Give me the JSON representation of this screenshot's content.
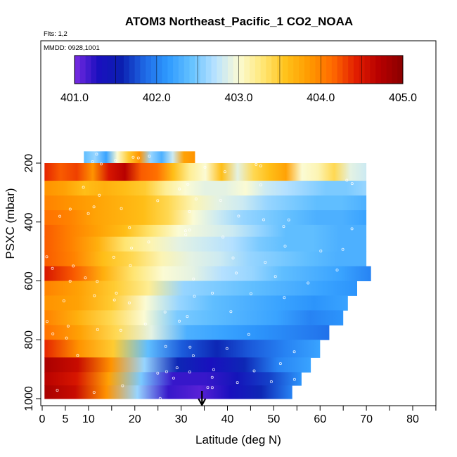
{
  "chart_data": {
    "type": "heatmap",
    "title": "ATOM3 Northeast_Pacific_1 CO2_NOAA",
    "flights_note": "Flts: 1,2",
    "dates_note": "MMDD: 0928,1001",
    "xlabel": "Latitude (deg N)",
    "ylabel": "PSXC (mbar)",
    "xlim": [
      0,
      85
    ],
    "ylim": [
      1000,
      0
    ],
    "x_ticks": [
      0,
      5,
      10,
      20,
      30,
      40,
      50,
      60,
      70,
      80
    ],
    "y_ticks": [
      200,
      400,
      600,
      800,
      1000
    ],
    "colorbar": {
      "min": 401.0,
      "max": 405.0,
      "tick_values": [
        401.0,
        402.0,
        403.0,
        404.0,
        405.0
      ],
      "tick_labels": [
        "401.0",
        "402.0",
        "403.0",
        "404.0",
        "405.0"
      ],
      "colors": [
        "#7a2be2",
        "#1a0fbf",
        "#0b1fb0",
        "#1f6ae6",
        "#2e9bff",
        "#66c2ff",
        "#b8e2ff",
        "#fbfbd4",
        "#ffe777",
        "#ffc21a",
        "#ff9a00",
        "#ff6a00",
        "#e21d00",
        "#b60000",
        "#8a0000"
      ]
    },
    "layers": [
      {
        "p": [
          160,
          200
        ],
        "lat": [
          9,
          33
        ],
        "values": [
          402.4,
          402.6,
          402.2,
          403.0,
          403.5,
          403.9,
          402.6,
          402.3,
          402.8,
          403.8,
          403.9
        ]
      },
      {
        "p": [
          200,
          260
        ],
        "lat": [
          0.5,
          70
        ],
        "values": [
          404.4,
          404.2,
          404.3,
          403.9,
          404.5,
          404.7,
          404.2,
          404.1,
          403.6,
          403.2,
          403.0,
          403.6,
          402.9,
          403.4,
          403.6,
          403.8,
          403.0,
          403.1,
          403.4,
          402.9,
          402.8
        ]
      },
      {
        "p": [
          260,
          310
        ],
        "lat": [
          0.5,
          70
        ],
        "values": [
          403.9,
          403.8,
          403.6,
          403.7,
          403.6,
          403.5,
          403.2,
          403.0,
          402.9,
          402.9,
          403.0,
          402.8,
          402.7,
          402.6,
          402.5,
          402.5,
          402.6
        ]
      },
      {
        "p": [
          310,
          360
        ],
        "lat": [
          0.5,
          70
        ],
        "values": [
          404.0,
          403.9,
          403.8,
          403.7,
          403.6,
          403.4,
          403.1,
          402.9,
          402.8,
          402.6,
          402.5,
          402.4,
          402.4,
          402.3
        ]
      },
      {
        "p": [
          360,
          410
        ],
        "lat": [
          0.5,
          70
        ],
        "values": [
          404.1,
          404.0,
          403.8,
          403.7,
          403.6,
          403.4,
          403.0,
          402.8,
          402.6,
          402.5,
          402.4,
          402.3,
          402.3,
          402.2
        ]
      },
      {
        "p": [
          410,
          450
        ],
        "lat": [
          0.5,
          70
        ],
        "values": [
          404.2,
          404.0,
          403.8,
          403.6,
          403.3,
          403.0,
          402.9,
          402.8,
          402.6,
          402.4,
          402.4,
          402.3,
          402.3
        ]
      },
      {
        "p": [
          450,
          500
        ],
        "lat": [
          0.5,
          70
        ],
        "values": [
          404.2,
          404.0,
          403.7,
          403.3,
          403.1,
          402.9,
          402.8,
          402.7,
          402.5,
          402.4,
          402.4,
          402.3,
          402.3
        ]
      },
      {
        "p": [
          500,
          550
        ],
        "lat": [
          0.5,
          70
        ],
        "values": [
          404.2,
          404.0,
          403.6,
          403.4,
          403.1,
          402.9,
          402.8,
          402.6,
          402.5,
          402.4,
          402.3,
          402.3
        ]
      },
      {
        "p": [
          550,
          600
        ],
        "lat": [
          0.5,
          71
        ],
        "values": [
          404.5,
          404.2,
          403.7,
          403.3,
          403.0,
          402.9,
          402.7,
          402.6,
          402.4,
          402.3,
          402.2,
          402.0
        ]
      },
      {
        "p": [
          600,
          650
        ],
        "lat": [
          0.5,
          68
        ],
        "values": [
          404.0,
          403.8,
          403.5,
          403.2,
          402.6,
          402.5,
          402.4,
          402.3,
          402.2,
          402.1
        ]
      },
      {
        "p": [
          650,
          700
        ],
        "lat": [
          0.5,
          66
        ],
        "values": [
          403.9,
          403.8,
          403.5,
          403.0,
          402.6,
          402.4,
          402.3,
          402.2,
          402.1,
          402.2
        ]
      },
      {
        "p": [
          700,
          750
        ],
        "lat": [
          0.5,
          65
        ],
        "values": [
          404.0,
          403.7,
          403.4,
          403.0,
          402.5,
          402.4,
          402.3,
          402.2,
          402.0,
          402.1
        ]
      },
      {
        "p": [
          750,
          800
        ],
        "lat": [
          0.5,
          62
        ],
        "values": [
          404.1,
          403.8,
          403.4,
          402.9,
          402.3,
          402.2,
          402.1,
          402.0,
          401.9
        ]
      },
      {
        "p": [
          800,
          860
        ],
        "lat": [
          0.5,
          60
        ],
        "values": [
          404.4,
          403.9,
          403.5,
          402.4,
          401.8,
          401.6,
          401.8,
          402.0,
          402.2
        ]
      },
      {
        "p": [
          860,
          910
        ],
        "lat": [
          0.5,
          58
        ],
        "values": [
          404.8,
          404.6,
          403.9,
          402.6,
          401.6,
          401.3,
          401.6,
          402.0,
          402.2
        ]
      },
      {
        "p": [
          910,
          955
        ],
        "lat": [
          0.5,
          56
        ],
        "values": [
          404.7,
          404.5,
          403.8,
          402.5,
          401.2,
          401.2,
          401.4,
          401.7,
          402.1
        ]
      },
      {
        "p": [
          955,
          1000
        ],
        "lat": [
          0.5,
          54
        ],
        "values": [
          404.8,
          404.6,
          403.9,
          402.6,
          401.2,
          401.1,
          401.3,
          401.6,
          402.0
        ]
      }
    ],
    "marker": {
      "label": "arrow",
      "lat": 34.5
    }
  }
}
